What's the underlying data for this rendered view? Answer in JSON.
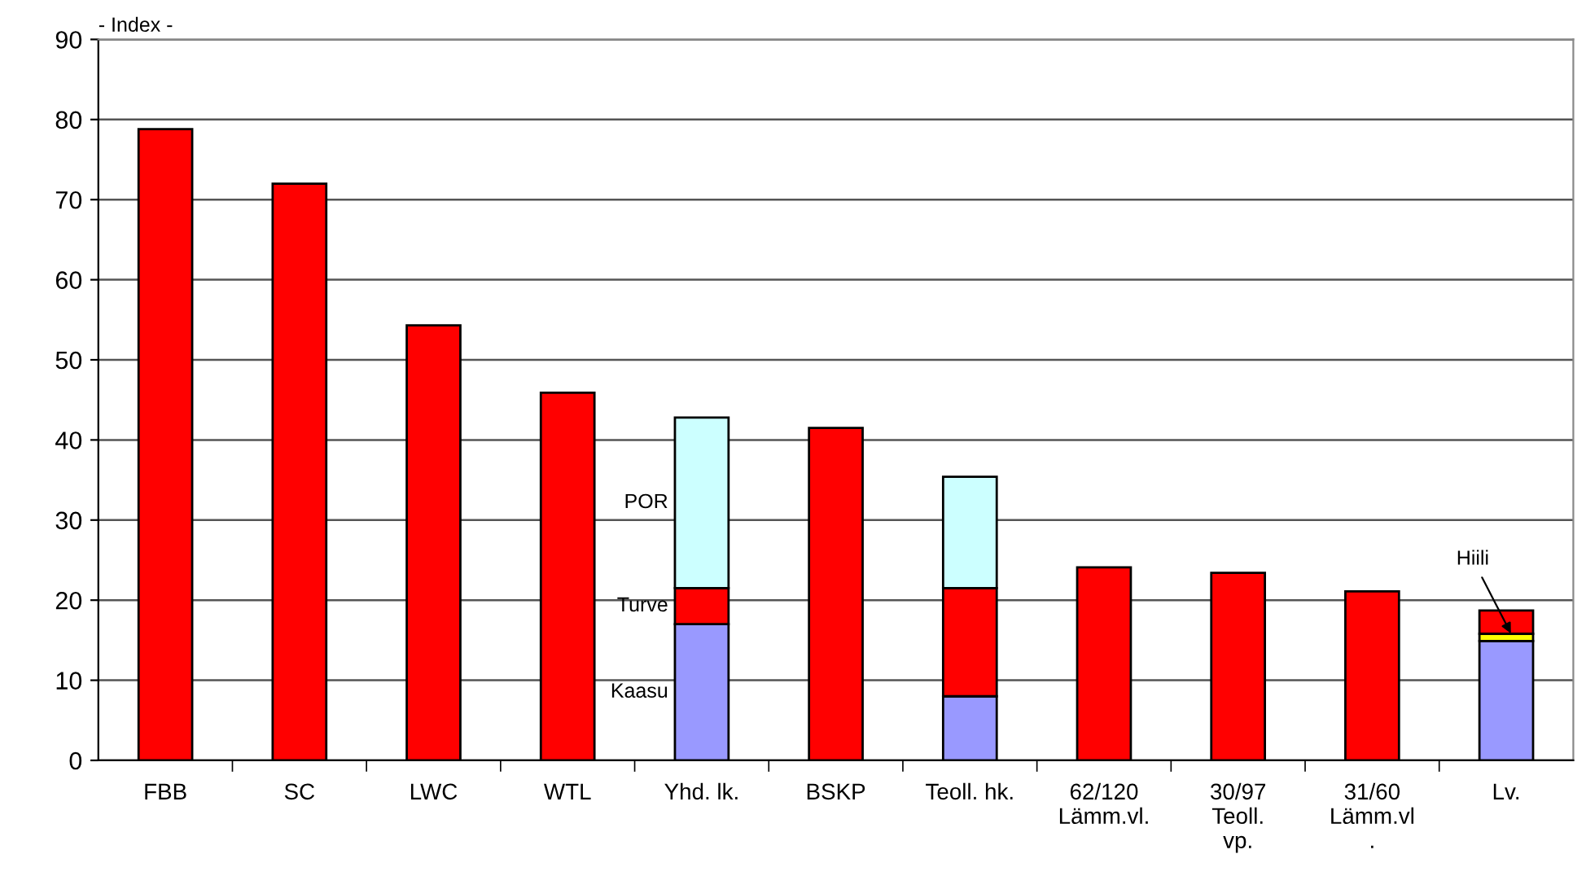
{
  "chart_data": {
    "type": "bar",
    "stacked": true,
    "ylabel": "- Index -",
    "categories": [
      "FBB",
      "SC",
      "LWC",
      "WTL",
      "Yhd. lk.",
      "BSKP",
      "Teoll. hk.",
      "62/120\nLämm.vl.",
      "30/97\nTeoll.\nvp.",
      "31/60\nLämm.vl\n.",
      "Lv."
    ],
    "series": [
      {
        "name": "Kaasu",
        "color": "#9999ff",
        "values": [
          null,
          null,
          null,
          null,
          17.0,
          null,
          8.0,
          null,
          null,
          null,
          14.9
        ]
      },
      {
        "name": "Hiili",
        "color": "#ffff00",
        "values": [
          null,
          null,
          null,
          null,
          null,
          null,
          null,
          null,
          null,
          null,
          0.9
        ]
      },
      {
        "name": "Turve",
        "color": "#ff0000",
        "values": [
          null,
          null,
          null,
          null,
          4.5,
          null,
          13.5,
          null,
          null,
          null,
          2.9
        ]
      },
      {
        "color": "#ff0000",
        "values": [
          78.8,
          72.0,
          54.3,
          45.9,
          null,
          41.5,
          null,
          24.1,
          23.4,
          21.1,
          null
        ]
      },
      {
        "name": "POR",
        "color": "#ccffff",
        "values": [
          null,
          null,
          null,
          null,
          21.3,
          null,
          13.9,
          null,
          null,
          null,
          null
        ]
      }
    ],
    "ylim": [
      0,
      90
    ],
    "yticks": [
      0,
      10,
      20,
      30,
      40,
      50,
      60,
      70,
      80,
      90
    ],
    "grid": "y"
  }
}
